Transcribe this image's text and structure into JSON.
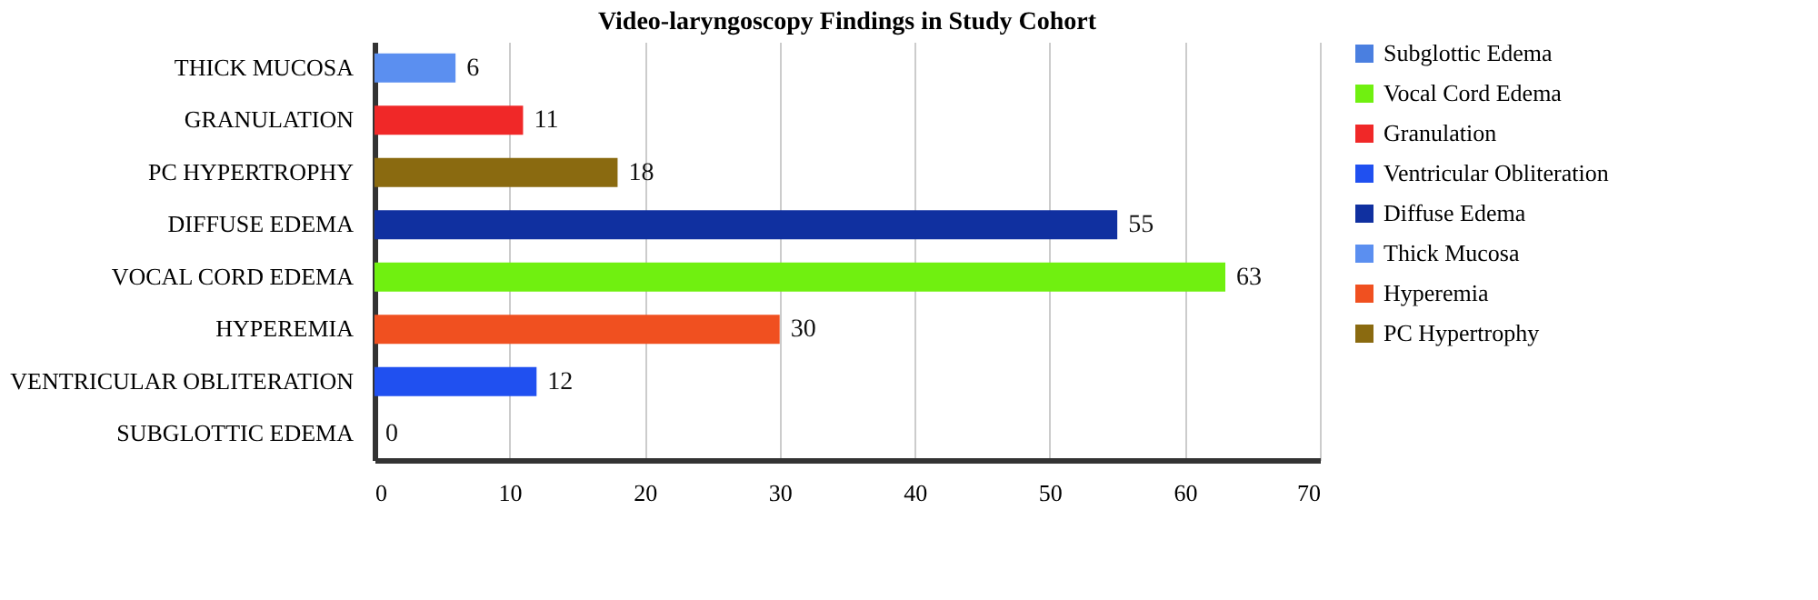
{
  "chart_data": {
    "type": "bar",
    "orientation": "horizontal",
    "title": "Video-laryngoscopy Findings in Study Cohort",
    "categories": [
      "THICK MUCOSA",
      "GRANULATION",
      "PC HYPERTROPHY",
      "DIFFUSE EDEMA",
      "VOCAL CORD EDEMA",
      "HYPEREMIA",
      "VENTRICULAR OBLITERATION",
      "SUBGLOTTIC EDEMA"
    ],
    "series": [
      {
        "name": "Subglottic Edema",
        "color": "#4a7fe0",
        "values": [
          null,
          null,
          null,
          null,
          null,
          null,
          null,
          0
        ]
      },
      {
        "name": "Vocal Cord Edema",
        "color": "#70f010",
        "values": [
          null,
          null,
          null,
          null,
          63,
          null,
          null,
          null
        ]
      },
      {
        "name": "Granulation",
        "color": "#f02828",
        "values": [
          null,
          11,
          null,
          null,
          null,
          null,
          null,
          null
        ]
      },
      {
        "name": "Ventricular Obliteration",
        "color": "#2050f0",
        "values": [
          null,
          null,
          null,
          null,
          null,
          null,
          12,
          null
        ]
      },
      {
        "name": "Diffuse Edema",
        "color": "#1030a0",
        "values": [
          null,
          null,
          null,
          55,
          null,
          null,
          null,
          null
        ]
      },
      {
        "name": "Thick Mucosa",
        "color": "#5b8ff0",
        "values": [
          6,
          null,
          null,
          null,
          null,
          null,
          null,
          null
        ]
      },
      {
        "name": "Hyperemia",
        "color": "#f05020",
        "values": [
          null,
          null,
          null,
          null,
          null,
          30,
          null,
          null
        ]
      },
      {
        "name": "PC Hypertrophy",
        "color": "#8a6a10",
        "values": [
          null,
          null,
          18,
          null,
          null,
          null,
          null,
          null
        ]
      }
    ],
    "xlim": [
      0,
      70
    ],
    "xticks": [
      0,
      10,
      20,
      30,
      40,
      50,
      60,
      70
    ],
    "grid": "x",
    "legend": "right",
    "data_labels": true
  }
}
